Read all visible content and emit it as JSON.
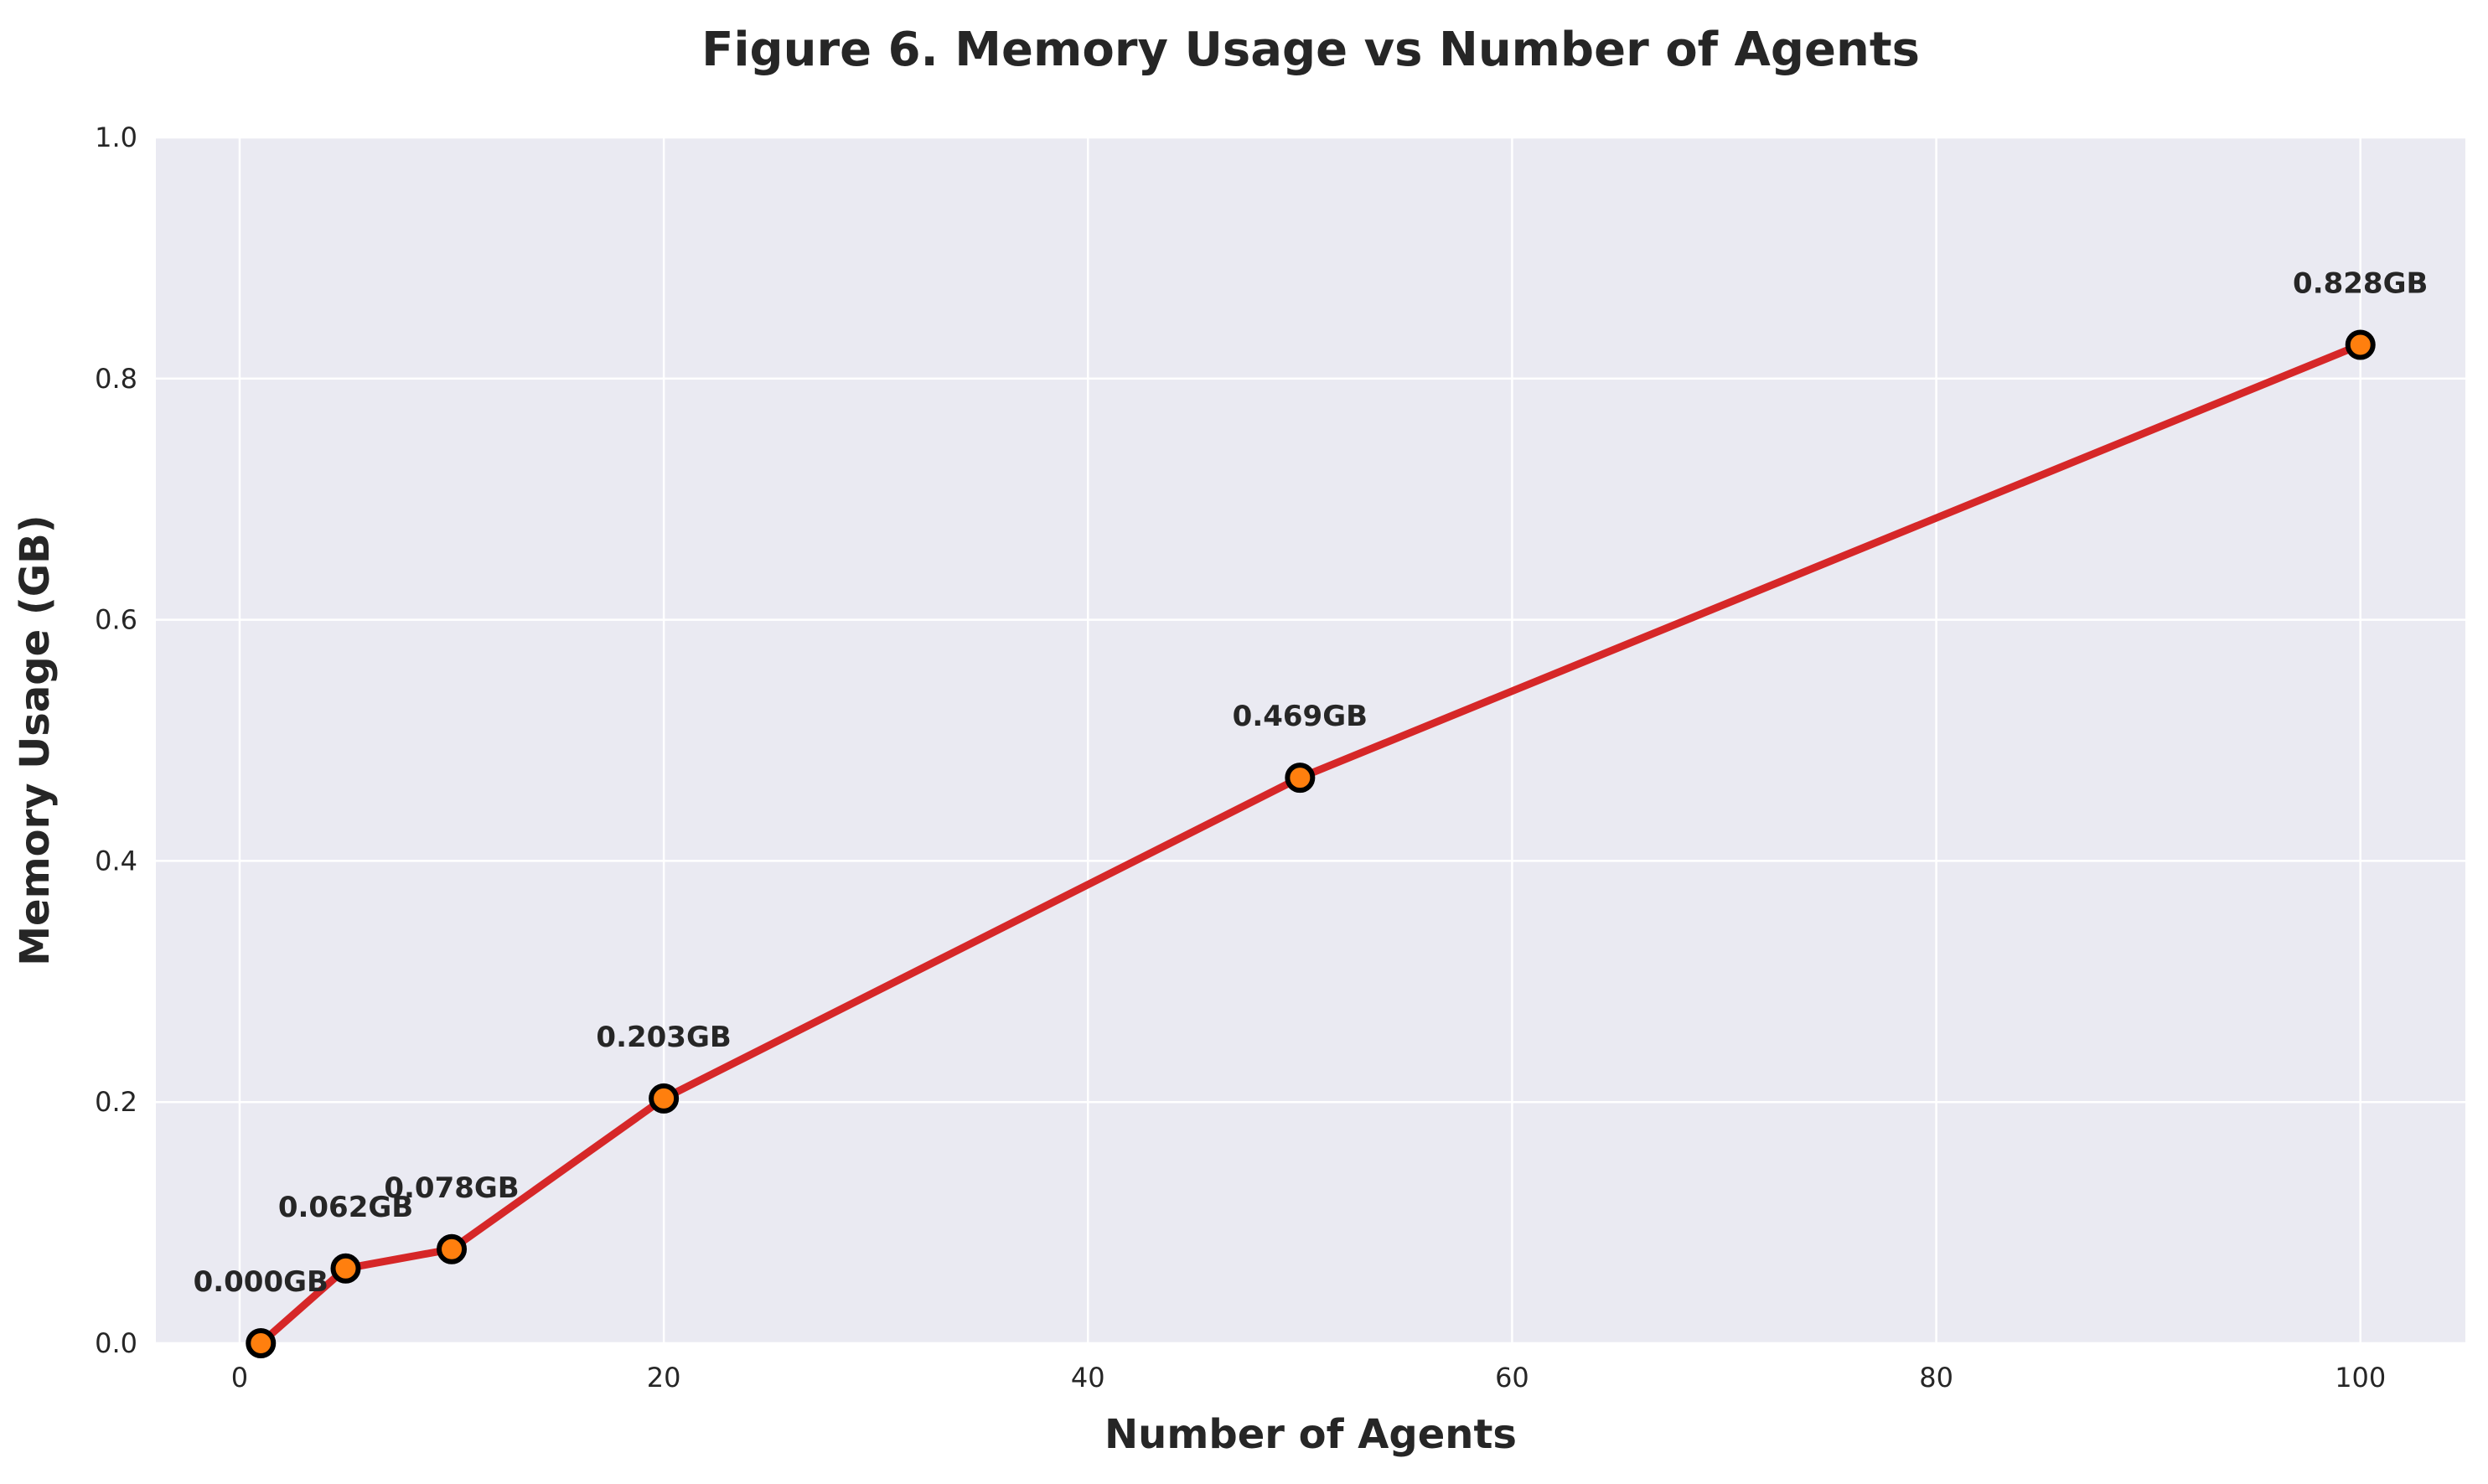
{
  "chart_data": {
    "type": "line",
    "title": "Figure 6. Memory Usage vs Number of Agents",
    "xlabel": "Number of Agents",
    "ylabel": "Memory Usage (GB)",
    "xlim": [
      -3.95,
      104.95
    ],
    "ylim": [
      0,
      1.0
    ],
    "xticks": [
      0,
      20,
      40,
      60,
      80,
      100
    ],
    "yticks": [
      0.0,
      0.2,
      0.4,
      0.6,
      0.8,
      1.0
    ],
    "xtick_labels": [
      "0",
      "20",
      "40",
      "60",
      "80",
      "100"
    ],
    "ytick_labels": [
      "0.0",
      "0.2",
      "0.4",
      "0.6",
      "0.8",
      "1.0"
    ],
    "grid": true,
    "series": [
      {
        "x": [
          1,
          5,
          10,
          20,
          50,
          100
        ],
        "values": [
          0.0,
          0.062,
          0.078,
          0.203,
          0.469,
          0.828
        ],
        "labels": [
          "0.000GB",
          "0.062GB",
          "0.078GB",
          "0.203GB",
          "0.469GB",
          "0.828GB"
        ],
        "line_color": "#d62728",
        "marker_color": "#ff7f0e",
        "marker_edge_color": "#000000"
      }
    ],
    "colors": {
      "plot_background": "#eaeaf2",
      "grid": "#ffffff",
      "text": "#262626"
    }
  }
}
